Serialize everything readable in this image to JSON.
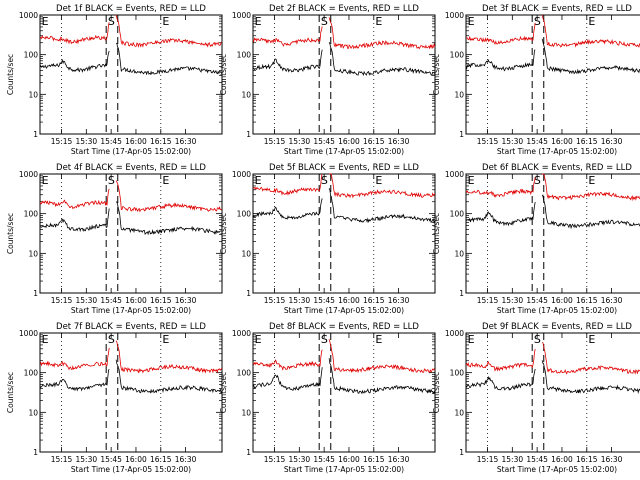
{
  "chart_data": [
    {
      "panel": "det1",
      "type": "line",
      "title": "Det 1f BLACK = Events, RED = LLD",
      "xlabel": "Start Time (17-Apr-05 15:02:00)",
      "ylabel": "Counts/sec",
      "y_scale": "log",
      "ylim": [
        1,
        1000
      ],
      "y_ticks": [
        "1",
        "10",
        "100",
        "1000"
      ],
      "x_range_min": [
        0,
        110
      ],
      "x_ticks": [
        "15:15",
        "15:30",
        "15:45",
        "16:00",
        "16:15",
        "16:30"
      ],
      "x_tick_minutes": [
        13,
        28,
        43,
        58,
        73,
        88
      ],
      "dotted_lines_min": [
        13,
        73
      ],
      "dashed_lines_min": [
        40,
        47
      ],
      "markers": [
        {
          "text": "E",
          "x_min": 1
        },
        {
          "text": "S",
          "x_min": 41
        },
        {
          "text": "E",
          "x_min": 74
        }
      ],
      "series": [
        {
          "color": "#000000",
          "level": 47,
          "pre_bump": 65
        },
        {
          "color": "#e00000",
          "level": 240,
          "pre_bump": 270
        }
      ],
      "saa_gap_min": [
        42,
        46
      ]
    },
    {
      "panel": "det2",
      "type": "line",
      "title": "Det 2f BLACK = Events, RED = LLD",
      "xlabel": "Start Time (17-Apr-05 15:02:00)",
      "ylabel": "Counts/sec",
      "y_scale": "log",
      "ylim": [
        1,
        1000
      ],
      "y_ticks": [
        "1",
        "10",
        "100",
        "1000"
      ],
      "x_range_min": [
        0,
        110
      ],
      "x_ticks": [
        "15:15",
        "15:30",
        "15:45",
        "16:00",
        "16:15",
        "16:30"
      ],
      "x_tick_minutes": [
        13,
        28,
        43,
        58,
        73,
        88
      ],
      "dotted_lines_min": [
        13,
        73
      ],
      "dashed_lines_min": [
        40,
        47
      ],
      "markers": [
        {
          "text": "E",
          "x_min": 1
        },
        {
          "text": "S",
          "x_min": 41
        },
        {
          "text": "E",
          "x_min": 74
        }
      ],
      "series": [
        {
          "color": "#000000",
          "level": 45,
          "pre_bump": 70
        },
        {
          "color": "#e00000",
          "level": 210,
          "pre_bump": 250
        }
      ],
      "saa_gap_min": [
        42,
        46
      ]
    },
    {
      "panel": "det3",
      "type": "line",
      "title": "Det 3f BLACK = Events, RED = LLD",
      "xlabel": "Start Time (17-Apr-05 15:02:00)",
      "ylabel": "Counts/sec",
      "y_scale": "log",
      "ylim": [
        1,
        1000
      ],
      "y_ticks": [
        "1",
        "10",
        "100",
        "1000"
      ],
      "x_range_min": [
        0,
        110
      ],
      "x_ticks": [
        "15:15",
        "15:30",
        "15:45",
        "16:00",
        "16:15",
        "16:30"
      ],
      "x_tick_minutes": [
        13,
        28,
        43,
        58,
        73,
        88
      ],
      "dotted_lines_min": [
        13,
        73
      ],
      "dashed_lines_min": [
        40,
        47
      ],
      "markers": [
        {
          "text": "E",
          "x_min": 1
        },
        {
          "text": "S",
          "x_min": 41
        },
        {
          "text": "E",
          "x_min": 74
        }
      ],
      "series": [
        {
          "color": "#000000",
          "level": 50,
          "pre_bump": 65
        },
        {
          "color": "#e00000",
          "level": 230,
          "pre_bump": 260
        }
      ],
      "saa_gap_min": [
        42,
        46
      ]
    },
    {
      "panel": "det4",
      "type": "line",
      "title": "Det 4f BLACK = Events, RED = LLD",
      "xlabel": "Start Time (17-Apr-05 15:02:00)",
      "ylabel": "Counts/sec",
      "y_scale": "log",
      "ylim": [
        1,
        1000
      ],
      "y_ticks": [
        "1",
        "10",
        "100",
        "1000"
      ],
      "x_range_min": [
        0,
        110
      ],
      "x_ticks": [
        "15:15",
        "15:30",
        "15:45",
        "16:00",
        "16:15",
        "16:30"
      ],
      "x_tick_minutes": [
        13,
        28,
        43,
        58,
        73,
        88
      ],
      "dotted_lines_min": [
        13,
        73
      ],
      "dashed_lines_min": [
        40,
        47
      ],
      "markers": [
        {
          "text": "E",
          "x_min": 1
        },
        {
          "text": "S",
          "x_min": 41
        },
        {
          "text": "E",
          "x_min": 74
        }
      ],
      "series": [
        {
          "color": "#000000",
          "level": 45,
          "pre_bump": 65
        },
        {
          "color": "#e00000",
          "level": 170,
          "pre_bump": 220
        }
      ],
      "saa_gap_min": [
        42,
        46
      ]
    },
    {
      "panel": "det5",
      "type": "line",
      "title": "Det 5f BLACK = Events, RED = LLD",
      "xlabel": "Start Time (17-Apr-05 15:02:00)",
      "ylabel": "Counts/sec",
      "y_scale": "log",
      "ylim": [
        1,
        1000
      ],
      "y_ticks": [
        "1",
        "10",
        "100",
        "1000"
      ],
      "x_range_min": [
        0,
        110
      ],
      "x_ticks": [
        "15:15",
        "15:30",
        "15:45",
        "16:00",
        "16:15",
        "16:30"
      ],
      "x_tick_minutes": [
        13,
        28,
        43,
        58,
        73,
        88
      ],
      "dotted_lines_min": [
        13,
        73
      ],
      "dashed_lines_min": [
        40,
        47
      ],
      "markers": [
        {
          "text": "E",
          "x_min": 1
        },
        {
          "text": "S",
          "x_min": 41
        },
        {
          "text": "E",
          "x_min": 74
        }
      ],
      "series": [
        {
          "color": "#000000",
          "level": 90,
          "pre_bump": 130
        },
        {
          "color": "#e00000",
          "level": 380,
          "pre_bump": 420
        }
      ],
      "saa_gap_min": [
        42,
        46
      ]
    },
    {
      "panel": "det6",
      "type": "line",
      "title": "Det 6f BLACK = Events, RED = LLD",
      "xlabel": "Start Time (17-Apr-05 15:02:00)",
      "ylabel": "Counts/sec",
      "y_scale": "log",
      "ylim": [
        1,
        1000
      ],
      "y_ticks": [
        "1",
        "10",
        "100",
        "1000"
      ],
      "x_range_min": [
        0,
        110
      ],
      "x_ticks": [
        "15:15",
        "15:30",
        "15:45",
        "16:00",
        "16:15",
        "16:30"
      ],
      "x_tick_minutes": [
        13,
        28,
        43,
        58,
        73,
        88
      ],
      "dotted_lines_min": [
        13,
        73
      ],
      "dashed_lines_min": [
        40,
        47
      ],
      "markers": [
        {
          "text": "E",
          "x_min": 1
        },
        {
          "text": "S",
          "x_min": 41
        },
        {
          "text": "E",
          "x_min": 74
        }
      ],
      "series": [
        {
          "color": "#000000",
          "level": 65,
          "pre_bump": 100
        },
        {
          "color": "#e00000",
          "level": 330,
          "pre_bump": 370
        }
      ],
      "saa_gap_min": [
        42,
        46
      ]
    },
    {
      "panel": "det7",
      "type": "line",
      "title": "Det 7f BLACK = Events, RED = LLD",
      "xlabel": "Start Time (17-Apr-05 15:02:00)",
      "ylabel": "Counts/sec",
      "y_scale": "log",
      "ylim": [
        1,
        1000
      ],
      "y_ticks": [
        "1",
        "10",
        "100",
        "1000"
      ],
      "x_range_min": [
        0,
        110
      ],
      "x_ticks": [
        "15:15",
        "15:30",
        "15:45",
        "16:00",
        "16:15",
        "16:30"
      ],
      "x_tick_minutes": [
        13,
        28,
        43,
        58,
        73,
        88
      ],
      "dotted_lines_min": [
        13,
        73
      ],
      "dashed_lines_min": [
        40,
        47
      ],
      "markers": [
        {
          "text": "E",
          "x_min": 1
        },
        {
          "text": "S",
          "x_min": 41
        },
        {
          "text": "E",
          "x_min": 74
        }
      ],
      "series": [
        {
          "color": "#000000",
          "level": 45,
          "pre_bump": 60
        },
        {
          "color": "#e00000",
          "level": 150,
          "pre_bump": 180
        }
      ],
      "saa_gap_min": [
        42,
        46
      ]
    },
    {
      "panel": "det8",
      "type": "line",
      "title": "Det 8f BLACK = Events, RED = LLD",
      "xlabel": "Start Time (17-Apr-05 15:02:00)",
      "ylabel": "Counts/sec",
      "y_scale": "log",
      "ylim": [
        1,
        1000
      ],
      "y_ticks": [
        "1",
        "10",
        "100",
        "1000"
      ],
      "x_range_min": [
        0,
        110
      ],
      "x_ticks": [
        "15:15",
        "15:30",
        "15:45",
        "16:00",
        "16:15",
        "16:30"
      ],
      "x_tick_minutes": [
        13,
        28,
        43,
        58,
        73,
        88
      ],
      "dotted_lines_min": [
        13,
        73
      ],
      "dashed_lines_min": [
        40,
        47
      ],
      "markers": [
        {
          "text": "E",
          "x_min": 1
        },
        {
          "text": "S",
          "x_min": 41
        },
        {
          "text": "E",
          "x_min": 74
        }
      ],
      "series": [
        {
          "color": "#000000",
          "level": 45,
          "pre_bump": 80
        },
        {
          "color": "#e00000",
          "level": 150,
          "pre_bump": 200
        }
      ],
      "saa_gap_min": [
        42,
        46
      ]
    },
    {
      "panel": "det9",
      "type": "line",
      "title": "Det 9f BLACK = Events, RED = LLD",
      "xlabel": "Start Time (17-Apr-05 15:02:00)",
      "ylabel": "Counts/sec",
      "y_scale": "log",
      "ylim": [
        1,
        1000
      ],
      "y_ticks": [
        "1",
        "10",
        "100",
        "1000"
      ],
      "x_range_min": [
        0,
        110
      ],
      "x_ticks": [
        "15:15",
        "15:30",
        "15:45",
        "16:00",
        "16:15",
        "16:30"
      ],
      "x_tick_minutes": [
        13,
        28,
        43,
        58,
        73,
        88
      ],
      "dotted_lines_min": [
        13,
        73
      ],
      "dashed_lines_min": [
        40,
        47
      ],
      "markers": [
        {
          "text": "E",
          "x_min": 1
        },
        {
          "text": "S",
          "x_min": 41
        },
        {
          "text": "E",
          "x_min": 74
        }
      ],
      "series": [
        {
          "color": "#000000",
          "level": 45,
          "pre_bump": 70
        },
        {
          "color": "#e00000",
          "level": 140,
          "pre_bump": 180
        }
      ],
      "saa_gap_min": [
        42,
        46
      ]
    }
  ]
}
